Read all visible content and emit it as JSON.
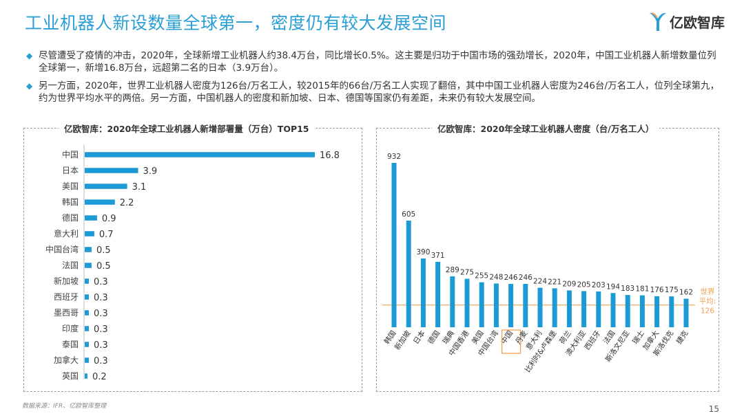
{
  "page": {
    "title": "工业机器人新设数量全球第一，密度仍有较大发展空间",
    "logo_text": "亿欧智库",
    "bullets": [
      "尽管遭受了疫情的冲击，2020年，全球新增工业机器人约38.4万台，同比增长0.5%。这主要是归功于中国市场的强劲增长，2020年，中国工业机器人新增数量位列全球第一，新增16.8万台，远超第二名的日本（3.9万台）。",
      "另一方面，2020年，世界工业机器人密度为126台/万名工人，较2015年的66台/万名工人实现了翻倍，其中中国工业机器人密度为246台/万名工人，位列全球第九，约为世界平均水平的两倍。另一方面，中国机器人的密度和新加坡、日本、德国等国家仍有差距，未来仍有较大发展空间。"
    ],
    "source": "数据来源：IFR、亿欧智库整理",
    "page_number": "15"
  },
  "colors": {
    "accent": "#2a9fd6",
    "bar": "#1b9ad6",
    "average_line": "#f0a050",
    "highlight_box": "#f0a050"
  },
  "chart_data": [
    {
      "type": "bar",
      "orientation": "horizontal",
      "title": "亿欧智库：2020年全球工业机器人新增部署量（万台）TOP15",
      "categories": [
        "中国",
        "日本",
        "美国",
        "韩国",
        "德国",
        "意大利",
        "中国台湾",
        "法国",
        "新加坡",
        "西班牙",
        "墨西哥",
        "印度",
        "泰国",
        "加拿大",
        "英国"
      ],
      "values": [
        16.8,
        3.9,
        3.1,
        2.2,
        0.9,
        0.7,
        0.5,
        0.5,
        0.3,
        0.3,
        0.3,
        0.3,
        0.3,
        0.3,
        0.2
      ],
      "value_labels": [
        "16.8",
        "3.9",
        "3.1",
        "2.2",
        "0.9",
        "0.7",
        "0.5",
        "0.5",
        "0.3",
        "0.3",
        "0.3",
        "0.3",
        "0.3",
        "0.3",
        "0.2"
      ],
      "xlim": [
        0,
        16.8
      ],
      "grid": false
    },
    {
      "type": "bar",
      "orientation": "vertical",
      "title": "亿欧智库：2020年全球工业机器人密度（台/万名工人）",
      "categories": [
        "韩国",
        "新加坡",
        "日本",
        "德国",
        "瑞典",
        "中国香港",
        "美国",
        "中国台湾",
        "中国",
        "丹麦",
        "意大利",
        "比利时&卢森堡",
        "荷兰",
        "澳大利亚",
        "西班牙",
        "法国",
        "斯洛文尼亚",
        "瑞士",
        "加拿大",
        "斯洛伐克",
        "捷克"
      ],
      "values": [
        932,
        605,
        390,
        371,
        289,
        275,
        255,
        248,
        246,
        246,
        224,
        221,
        209,
        205,
        203,
        194,
        183,
        181,
        176,
        175,
        162
      ],
      "value_labels": [
        "932",
        "605",
        "390",
        "371",
        "289",
        "275",
        "255",
        "248",
        "246",
        "246",
        "224",
        "221",
        "209",
        "205",
        "203",
        "194",
        "183",
        "181",
        "176",
        "175",
        "162"
      ],
      "highlight_category": "中国",
      "ylim": [
        0,
        932
      ],
      "reference_line": {
        "value": 126,
        "label_line1": "世界",
        "label_line2": "平均:",
        "label_value": "126"
      },
      "grid": false
    }
  ]
}
